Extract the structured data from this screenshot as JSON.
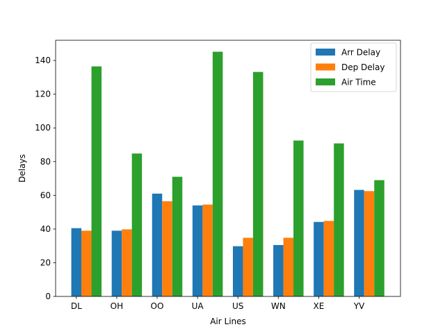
{
  "chart_data": {
    "type": "bar",
    "title": "",
    "xlabel": "Air Lines",
    "ylabel": "Delays",
    "categories": [
      "DL",
      "OH",
      "OO",
      "UA",
      "US",
      "WN",
      "XE",
      "YV"
    ],
    "ylim": [
      0,
      152
    ],
    "yticks": [
      0,
      20,
      40,
      60,
      80,
      100,
      120,
      140
    ],
    "grid": false,
    "legend_position": "top-right",
    "series": [
      {
        "name": "Arr Delay",
        "color": "#1f77b4",
        "values": [
          40.5,
          39.0,
          61.0,
          54.0,
          29.8,
          30.5,
          44.2,
          63.2
        ]
      },
      {
        "name": "Dep Delay",
        "color": "#ff7f0e",
        "values": [
          39.0,
          39.8,
          56.5,
          54.5,
          34.8,
          34.8,
          44.8,
          62.5
        ]
      },
      {
        "name": "Air Time",
        "color": "#2ca02c",
        "values": [
          136.5,
          84.8,
          71.0,
          145.2,
          133.2,
          92.5,
          90.8,
          69.0
        ]
      }
    ]
  }
}
